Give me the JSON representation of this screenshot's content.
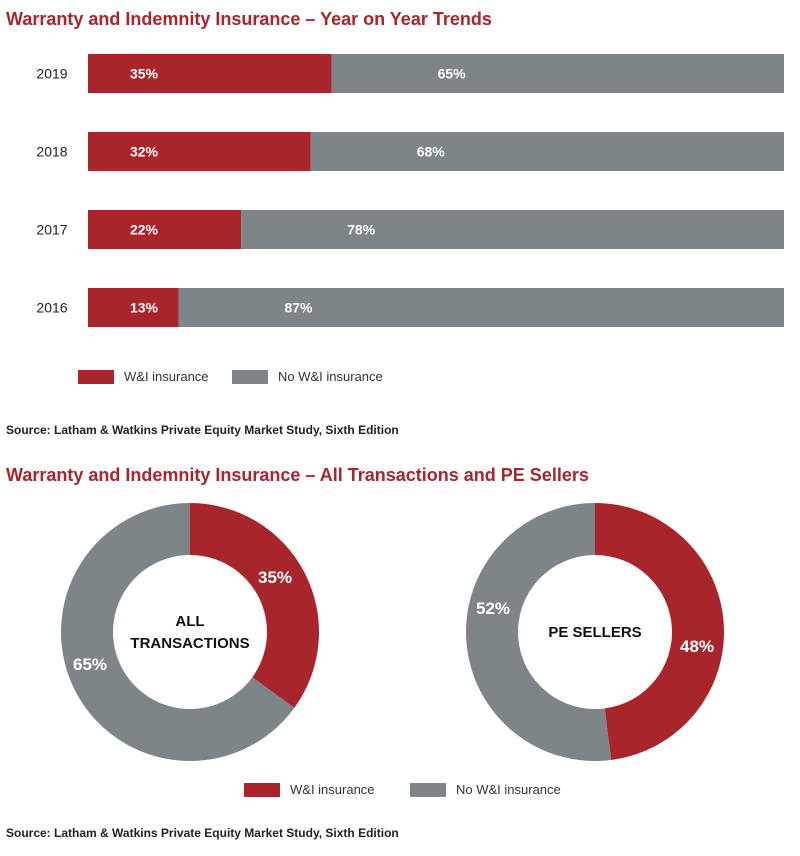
{
  "colors": {
    "wi": "#a8252b",
    "no_wi": "#7e8589",
    "title": "#a8252b"
  },
  "section1": {
    "title": "Warranty and Indemnity Insurance – Year on Year Trends",
    "source": "Source: Latham & Watkins Private Equity Market Study, Sixth Edition",
    "legend": {
      "wi": "W&I insurance",
      "no_wi": "No W&I insurance"
    }
  },
  "section2": {
    "title": "Warranty and Indemnity Insurance – All Transactions and PE Sellers",
    "source": "Source: Latham & Watkins Private Equity Market Study, Sixth Edition",
    "legend": {
      "wi": "W&I insurance",
      "no_wi": "No W&I insurance"
    }
  },
  "chart_data": [
    {
      "type": "bar",
      "orientation": "horizontal",
      "stacked": true,
      "title": "Warranty and Indemnity Insurance – Year on Year Trends",
      "categories": [
        "2019",
        "2018",
        "2017",
        "2016"
      ],
      "series": [
        {
          "name": "W&I insurance",
          "values": [
            35,
            32,
            22,
            13
          ],
          "labels": [
            "35%",
            "32%",
            "22%",
            "13%"
          ],
          "color": "#a8252b"
        },
        {
          "name": "No W&I insurance",
          "values": [
            65,
            68,
            78,
            87
          ],
          "labels": [
            "65%",
            "68%",
            "78%",
            "87%"
          ],
          "color": "#7e8589"
        }
      ],
      "xlim": [
        0,
        100
      ],
      "legend": "bottom"
    },
    {
      "type": "pie",
      "variant": "donut",
      "center_label": [
        "ALL",
        "TRANSACTIONS"
      ],
      "slices": [
        {
          "name": "W&I insurance",
          "value": 35,
          "label": "35%",
          "color": "#a8252b"
        },
        {
          "name": "No W&I insurance",
          "value": 65,
          "label": "65%",
          "color": "#7e8589"
        }
      ],
      "legend": "bottom"
    },
    {
      "type": "pie",
      "variant": "donut",
      "center_label": [
        "PE SELLERS"
      ],
      "slices": [
        {
          "name": "W&I insurance",
          "value": 48,
          "label": "48%",
          "color": "#a8252b"
        },
        {
          "name": "No W&I insurance",
          "value": 52,
          "label": "52%",
          "color": "#7e8589"
        }
      ],
      "legend": "bottom"
    }
  ]
}
